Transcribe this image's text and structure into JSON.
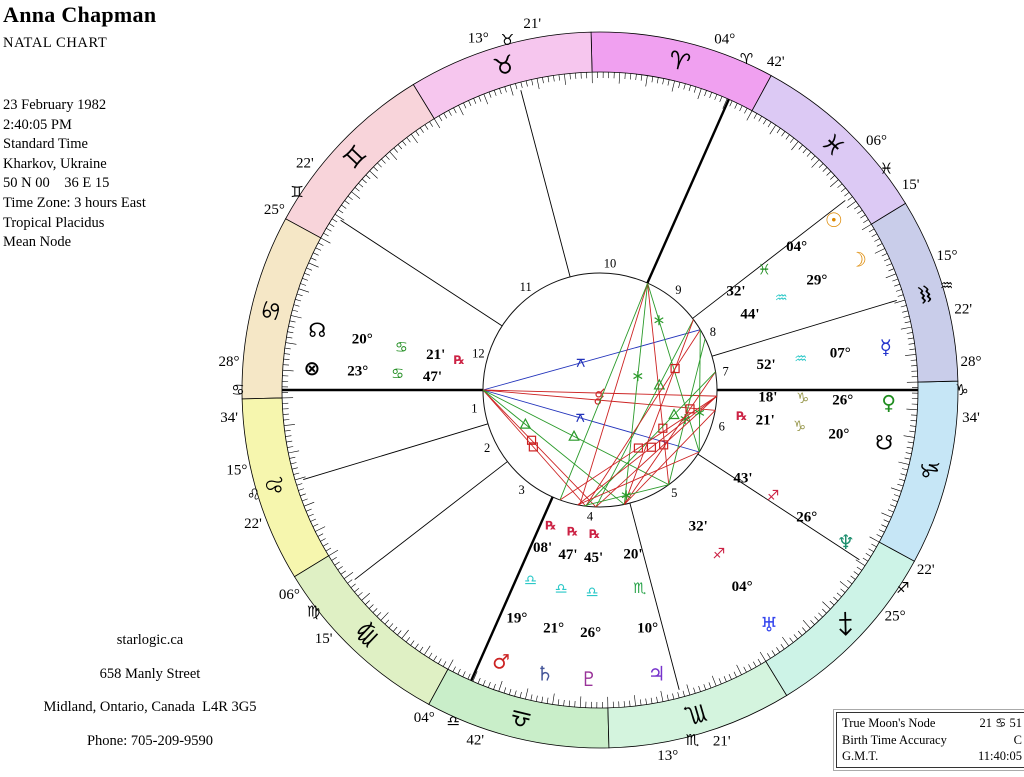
{
  "header": {
    "name": "Anna Chapman",
    "chart_type": "NATAL CHART"
  },
  "birth_info": {
    "lines": [
      "23 February 1982",
      "2:40:05 PM",
      "Standard Time",
      "Kharkov, Ukraine",
      "50 N 00    36 E 15",
      "Time Zone: 3 hours East",
      "Tropical Placidus",
      "Mean Node"
    ]
  },
  "footer": {
    "lines": [
      "starlogic.ca",
      "658 Manly Street",
      "Midland, Ontario, Canada  L4R 3G5",
      "Phone: 705-209-9590"
    ]
  },
  "info_box": {
    "rows": [
      {
        "label": "True Moon's Node",
        "value": "21 ♋ 51"
      },
      {
        "label": "Birth Time Accuracy",
        "value": "C"
      },
      {
        "label": "G.M.T.",
        "value": "11:40:05"
      }
    ]
  },
  "chart_data": {
    "type": "natal_wheel",
    "ascendant": "28° ♋ 34'",
    "midheaven": "04° ♈ 42'",
    "signs": [
      {
        "name": "aries",
        "glyph": "♈",
        "color": "#f0a0f0",
        "start": 61.43
      },
      {
        "name": "taurus",
        "glyph": "♉",
        "color": "#f6c6ee",
        "start": 91.43
      },
      {
        "name": "gemini",
        "glyph": "♊",
        "color": "#f8d4da",
        "start": 121.43
      },
      {
        "name": "cancer",
        "glyph": "♋",
        "color": "#f5e7c6",
        "start": 151.43
      },
      {
        "name": "leo",
        "glyph": "♌",
        "color": "#f6f6ae",
        "start": 181.43
      },
      {
        "name": "virgo",
        "glyph": "♍",
        "color": "#dff0c4",
        "start": 211.43
      },
      {
        "name": "libra",
        "glyph": "♎",
        "color": "#c9eec9",
        "start": 241.43
      },
      {
        "name": "scorpio",
        "glyph": "♏",
        "color": "#d4f4de",
        "start": 271.43
      },
      {
        "name": "sagittarius",
        "glyph": "♐",
        "color": "#cdf3e7",
        "start": 301.43
      },
      {
        "name": "capricorn",
        "glyph": "♑",
        "color": "#c6e6f6",
        "start": 331.43
      },
      {
        "name": "aquarius",
        "glyph": "♒",
        "color": "#c9cdea",
        "start": 1.43
      },
      {
        "name": "pisces",
        "glyph": "♓",
        "color": "#dcc9f4",
        "start": 31.43
      }
    ],
    "houses": [
      {
        "num": 1,
        "angle": 180.0,
        "num_angle": 188.4,
        "deg": "28°",
        "sign": "♋",
        "min": "34'",
        "thick": true
      },
      {
        "num": 2,
        "angle": 196.8,
        "num_angle": 207.3,
        "deg": "15°",
        "sign": "♌",
        "min": "22'",
        "thick": false
      },
      {
        "num": 3,
        "angle": 217.7,
        "num_angle": 231.9,
        "deg": "06°",
        "sign": "♍",
        "min": "15'",
        "thick": false
      },
      {
        "num": 4,
        "angle": 246.1,
        "num_angle": 265.5,
        "deg": "04°",
        "sign": "♎",
        "min": "42'",
        "thick": true
      },
      {
        "num": 5,
        "angle": 284.8,
        "num_angle": 305.8,
        "deg": "13°",
        "sign": "♏",
        "min": "21'",
        "thick": false
      },
      {
        "num": 6,
        "angle": 326.8,
        "num_angle": 343.4,
        "deg": "25°",
        "sign": "♐",
        "min": "22'",
        "thick": false
      },
      {
        "num": 7,
        "angle": 0.0,
        "num_angle": 8.4,
        "deg": "28°",
        "sign": "♑",
        "min": "34'",
        "thick": true
      },
      {
        "num": 8,
        "angle": 16.8,
        "num_angle": 27.3,
        "deg": "15°",
        "sign": "♒",
        "min": "22'",
        "thick": false
      },
      {
        "num": 9,
        "angle": 37.7,
        "num_angle": 51.9,
        "deg": "06°",
        "sign": "♓",
        "min": "15'",
        "thick": false
      },
      {
        "num": 10,
        "angle": 66.1,
        "num_angle": 85.5,
        "deg": "04°",
        "sign": "♈",
        "min": "42'",
        "thick": true
      },
      {
        "num": 11,
        "angle": 104.8,
        "num_angle": 125.8,
        "deg": "13°",
        "sign": "♉",
        "min": "21'",
        "thick": false
      },
      {
        "num": 12,
        "angle": 146.8,
        "num_angle": 163.3,
        "deg": "25°",
        "sign": "♊",
        "min": "22'",
        "thick": false
      }
    ],
    "planets": [
      {
        "name": "sun",
        "glyph": "☉",
        "color": "#dd8800",
        "angle": 36.0,
        "deg": "04°",
        "sign": "♓",
        "sign_color": "#1e8c1e",
        "min": "32'",
        "rx": false
      },
      {
        "name": "moon",
        "glyph": "☽",
        "color": "#dd8800",
        "angle": 26.8,
        "deg": "29°",
        "sign": "♒",
        "sign_color": "#2cc8c8",
        "min": "44'",
        "rx": false
      },
      {
        "name": "mercury",
        "glyph": "☿",
        "color": "#2233cc",
        "angle": 8.6,
        "deg": "07°",
        "sign": "♒",
        "sign_color": "#2cc8c8",
        "min": "52'",
        "rx": false
      },
      {
        "name": "venus",
        "glyph": "♀",
        "color": "#1e8c1e",
        "angle": 357.5,
        "deg": "26°",
        "sign": "♑",
        "sign_color": "#99994f",
        "min": "18'",
        "rx": false
      },
      {
        "name": "south-node",
        "glyph": "☋",
        "color": "#000000",
        "angle": 349.5,
        "deg": "20°",
        "sign": "♑",
        "sign_color": "#99994f",
        "min": "21'",
        "rx": true
      },
      {
        "name": "neptune",
        "glyph": "♆",
        "color": "#1f8f6f",
        "angle": 328.3,
        "deg": "26°",
        "sign": "♐",
        "sign_color": "#cc2244",
        "min": "43'",
        "rx": false
      },
      {
        "name": "uranus",
        "glyph": "♅",
        "color": "#3344ee",
        "angle": 305.8,
        "deg": "04°",
        "sign": "♐",
        "sign_color": "#cc2244",
        "min": "32'",
        "rx": false
      },
      {
        "name": "jupiter",
        "glyph": "♃",
        "color": "#7733cc",
        "angle": 281.3,
        "deg": "10°",
        "sign": "♏",
        "sign_color": "#22a044",
        "min": "20'",
        "rx": false
      },
      {
        "name": "pluto",
        "glyph": "♇",
        "color": "#993399",
        "angle": 267.8,
        "deg": "26°",
        "sign": "♎",
        "sign_color": "#2cc8c8",
        "min": "45'",
        "rx": true
      },
      {
        "name": "saturn",
        "glyph": "♄",
        "color": "#445599",
        "angle": 259.0,
        "deg": "21°",
        "sign": "♎",
        "sign_color": "#2cc8c8",
        "min": "47'",
        "rx": true
      },
      {
        "name": "mars",
        "glyph": "♂",
        "color": "#cc2222",
        "angle": 250.0,
        "deg": "19°",
        "sign": "♎",
        "sign_color": "#2cc8c8",
        "min": "08'",
        "rx": true
      },
      {
        "name": "north-node",
        "glyph": "☊",
        "color": "#000000",
        "angle": 168.0,
        "deg": "20°",
        "sign": "♋",
        "sign_color": "#1e8c1e",
        "min": "21'",
        "rx": true
      },
      {
        "name": "part-of-fortune",
        "glyph": "⊗",
        "color": "#000000",
        "angle": 175.6,
        "deg": "23°",
        "sign": "♋",
        "sign_color": "#1e8c1e",
        "min": "47'",
        "rx": false
      }
    ],
    "aspect_lines": [
      {
        "a1": 180,
        "a2": 31,
        "color": "#2233bb",
        "glyph": "qx",
        "t": 0.45
      },
      {
        "a1": 180,
        "a2": 328,
        "color": "#2233bb",
        "glyph": "qx",
        "t": 0.45
      },
      {
        "a1": 180,
        "a2": 357,
        "color": "#cc2222",
        "glyph": "cj",
        "t": 0.5
      },
      {
        "a1": 180,
        "a2": 350,
        "color": "#cc2222",
        "glyph": "cj",
        "t": 0.5
      },
      {
        "a1": 180,
        "a2": 268,
        "color": "#cc2222",
        "glyph": "sq",
        "t": 0.43
      },
      {
        "a1": 180,
        "a2": 263,
        "color": "#cc2222",
        "glyph": "sq",
        "t": 0.49
      },
      {
        "a1": 180,
        "a2": 306,
        "color": "#2a9a2a",
        "glyph": "tr",
        "t": 0.49
      },
      {
        "a1": 180,
        "a2": 282,
        "color": "#2a9a2a",
        "glyph": "tr",
        "t": 0.3
      },
      {
        "a1": 66,
        "a2": 328,
        "color": "#2a9a2a",
        "glyph": "sx",
        "t": 0.22
      },
      {
        "a1": 66,
        "a2": 306,
        "color": "#cc2222",
        "glyph": "sq",
        "t": 0.72
      },
      {
        "a1": 66,
        "a2": 282,
        "color": "#2a9a2a",
        "glyph": "sx",
        "t": 0.42
      },
      {
        "a1": 66,
        "a2": 260,
        "color": "#cc2222",
        "glyph": null,
        "t": 0
      },
      {
        "a1": 66,
        "a2": 250,
        "color": "#2a9a2a",
        "glyph": null,
        "t": 0
      },
      {
        "a1": 37,
        "a2": 268,
        "color": "#2a9a2a",
        "glyph": "tr",
        "t": 0.35
      },
      {
        "a1": 37,
        "a2": 282,
        "color": "#cc2222",
        "glyph": null,
        "t": 0
      },
      {
        "a1": 31,
        "a2": 263,
        "color": "#cc2222",
        "glyph": "sq",
        "t": 0.22
      },
      {
        "a1": 26,
        "a2": 306,
        "color": "#2a9a2a",
        "glyph": "sx",
        "t": 0.55
      },
      {
        "a1": 9,
        "a2": 282,
        "color": "#cc2222",
        "glyph": "sq",
        "t": 0.28
      },
      {
        "a1": 9,
        "a2": 263,
        "color": "#2a9a2a",
        "glyph": "tr",
        "t": 0.32
      },
      {
        "a1": 357,
        "a2": 250,
        "color": "#cc2222",
        "glyph": "sq",
        "t": 0.5
      },
      {
        "a1": 357,
        "a2": 259,
        "color": "#cc2222",
        "glyph": "sq",
        "t": 0.47
      },
      {
        "a1": 357,
        "a2": 268,
        "color": "#cc2222",
        "glyph": "sq",
        "t": 0.44
      },
      {
        "a1": 350,
        "a2": 282,
        "color": "#cc2222",
        "glyph": null,
        "t": 0
      },
      {
        "a1": 328,
        "a2": 259,
        "color": "#cc2222",
        "glyph": null,
        "t": 0
      },
      {
        "a1": 306,
        "a2": 262,
        "color": "#2a9a2a",
        "glyph": "sx",
        "t": 0.5
      },
      {
        "a1": 31,
        "a2": 328,
        "color": "#2a9a2a",
        "glyph": "sx",
        "t": 0.68
      }
    ]
  }
}
